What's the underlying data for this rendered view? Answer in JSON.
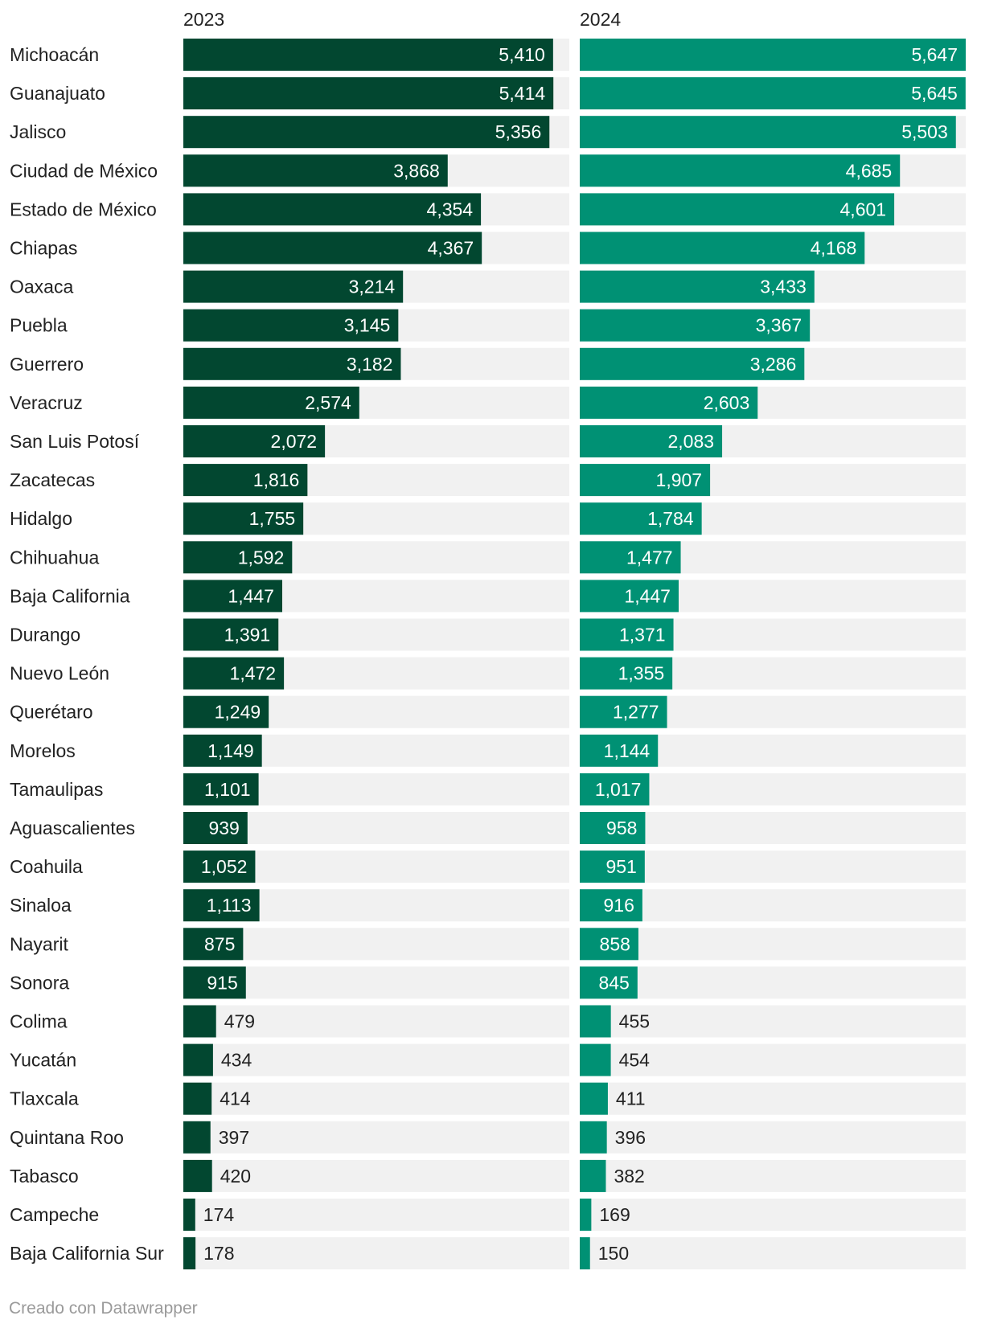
{
  "chart_data": {
    "type": "bar",
    "max_value": 5647,
    "colors": {
      "track": "#f1f1f1",
      "2023": "#024730",
      "2024": "#009174",
      "label_inside": "#ffffff",
      "label_outside": "#222222"
    },
    "categories": [
      "Michoacán",
      "Guanajuato",
      "Jalisco",
      "Ciudad de México",
      "Estado de México",
      "Chiapas",
      "Oaxaca",
      "Puebla",
      "Guerrero",
      "Veracruz",
      "San Luis Potosí",
      "Zacatecas",
      "Hidalgo",
      "Chihuahua",
      "Baja California",
      "Durango",
      "Nuevo León",
      "Querétaro",
      "Morelos",
      "Tamaulipas",
      "Aguascalientes",
      "Coahuila",
      "Sinaloa",
      "Nayarit",
      "Sonora",
      "Colima",
      "Yucatán",
      "Tlaxcala",
      "Quintana Roo",
      "Tabasco",
      "Campeche",
      "Baja California Sur"
    ],
    "series": [
      {
        "name": "2023",
        "values": [
          5410,
          5414,
          5356,
          3868,
          4354,
          4367,
          3214,
          3145,
          3182,
          2574,
          2072,
          1816,
          1755,
          1592,
          1447,
          1391,
          1472,
          1249,
          1149,
          1101,
          939,
          1052,
          1113,
          875,
          915,
          479,
          434,
          414,
          397,
          420,
          174,
          178
        ]
      },
      {
        "name": "2024",
        "values": [
          5647,
          5645,
          5503,
          4685,
          4601,
          4168,
          3433,
          3367,
          3286,
          2603,
          2083,
          1907,
          1784,
          1477,
          1447,
          1371,
          1355,
          1277,
          1144,
          1017,
          958,
          951,
          916,
          858,
          845,
          455,
          454,
          411,
          396,
          382,
          169,
          150
        ]
      }
    ]
  },
  "footer": "Creado con Datawrapper"
}
